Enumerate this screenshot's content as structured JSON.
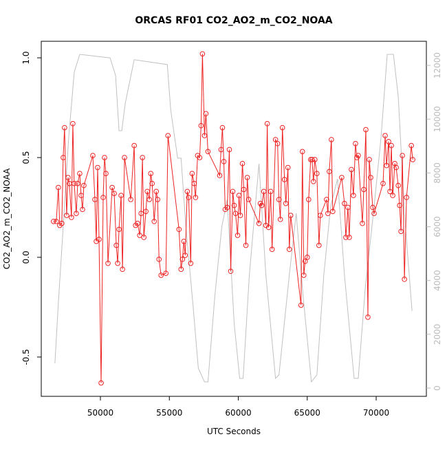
{
  "chart_data": {
    "type": "line",
    "title": "ORCAS RF01 CO2_AO2_m_CO2_NOAA",
    "xlabel": "UTC Seconds",
    "ylabel": "CO2_AO2_m_CO2_NOAA",
    "xlim": [
      45710,
      73640
    ],
    "ylim": [
      -0.697,
      1.083
    ],
    "y2lim": [
      -307,
      12896
    ],
    "xticks": [
      50000,
      55000,
      60000,
      65000,
      70000
    ],
    "yticks": [
      -0.5,
      {
        "value": 0,
        "label": "0.0"
      },
      0.5,
      {
        "value": 1,
        "label": "1.0"
      }
    ],
    "y2ticks": [
      0,
      2000,
      4000,
      6000,
      8000,
      10000,
      12000
    ],
    "series": [
      {
        "color": "#ee2222",
        "markers": true,
        "x": [
          46600,
          46800,
          46950,
          47050,
          47200,
          47300,
          47400,
          47550,
          47650,
          47750,
          47900,
          48000,
          48100,
          48250,
          48350,
          48500,
          48600,
          48700,
          48800,
          49450,
          49600,
          49700,
          49800,
          49900,
          50050,
          50200,
          50300,
          50400,
          50550,
          50850,
          51000,
          51150,
          51250,
          51350,
          51500,
          51600,
          51750,
          52200,
          52450,
          52550,
          52700,
          52850,
          52950,
          53050,
          53150,
          53300,
          53400,
          53550,
          53650,
          53750,
          53900,
          54050,
          54150,
          54250,
          54400,
          54750,
          54900,
          55700,
          55850,
          55950,
          56050,
          56150,
          56300,
          56400,
          56550,
          56650,
          56800,
          56900,
          57050,
          57200,
          57300,
          57400,
          57550,
          57650,
          57800,
          58650,
          58750,
          58850,
          58950,
          59050,
          59200,
          59350,
          59450,
          59600,
          59700,
          59800,
          59950,
          60050,
          60150,
          60300,
          60400,
          60550,
          60650,
          60750,
          61500,
          61600,
          61700,
          61850,
          62000,
          62100,
          62200,
          62350,
          62450,
          62700,
          62850,
          62950,
          63050,
          63200,
          63350,
          63450,
          63600,
          63700,
          63800,
          64550,
          64650,
          64750,
          64850,
          65000,
          65100,
          65250,
          65350,
          65450,
          65550,
          65700,
          65850,
          65950,
          66400,
          66500,
          66600,
          66750,
          66850,
          67500,
          67700,
          67800,
          67950,
          68050,
          68200,
          68350,
          68500,
          68600,
          68700,
          69000,
          69100,
          69250,
          69400,
          69500,
          69600,
          69750,
          69850,
          70500,
          70650,
          70750,
          70900,
          71000,
          71100,
          71200,
          71350,
          71450,
          71600,
          71700,
          71800,
          71900,
          72050,
          72200,
          72550,
          72650
        ],
        "values": [
          0.18,
          0.18,
          0.35,
          0.16,
          0.17,
          0.5,
          0.65,
          0.21,
          0.4,
          0.37,
          0.2,
          0.67,
          0.37,
          0.22,
          0.37,
          0.42,
          0.31,
          0.24,
          0.36,
          0.51,
          0.29,
          0.08,
          0.45,
          0.09,
          -0.63,
          0.3,
          0.5,
          0.42,
          -0.03,
          0.35,
          0.32,
          0.06,
          -0.03,
          0.14,
          0.31,
          -0.06,
          0.5,
          0.29,
          0.56,
          0.16,
          0.17,
          0.11,
          0.22,
          0.5,
          0.1,
          0.23,
          0.33,
          0.29,
          0.42,
          0.37,
          0.18,
          0.33,
          0.29,
          -0.01,
          -0.09,
          -0.08,
          0.61,
          0.14,
          -0.06,
          -0.01,
          0.08,
          0.01,
          0.33,
          0.3,
          -0.03,
          0.42,
          0.37,
          0.3,
          0.51,
          0.5,
          0.66,
          1.02,
          0.61,
          0.72,
          0.53,
          0.41,
          0.54,
          0.65,
          0.48,
          0.24,
          0.25,
          0.54,
          -0.07,
          0.33,
          0.26,
          0.22,
          0.11,
          0.31,
          0.21,
          0.47,
          0.34,
          0.06,
          0.4,
          0.29,
          0.17,
          0.27,
          0.26,
          0.33,
          0.16,
          0.67,
          0.15,
          0.33,
          0.04,
          0.59,
          0.57,
          0.29,
          0.19,
          0.65,
          0.39,
          0.27,
          0.45,
          0.04,
          0.21,
          -0.24,
          0.53,
          -0.09,
          -0.02,
          0.0,
          0.29,
          0.49,
          0.49,
          0.38,
          0.49,
          0.42,
          0.06,
          0.21,
          0.29,
          0.22,
          0.43,
          0.59,
          0.23,
          0.4,
          0.27,
          0.1,
          0.25,
          0.1,
          0.44,
          0.31,
          0.57,
          0.5,
          0.51,
          0.17,
          0.34,
          0.64,
          -0.3,
          0.49,
          0.4,
          0.25,
          0.22,
          0.37,
          0.61,
          0.46,
          0.58,
          0.33,
          0.56,
          0.31,
          0.47,
          0.45,
          0.36,
          0.26,
          0.13,
          0.51,
          -0.11,
          0.3,
          0.56,
          0.49
        ]
      },
      {
        "color": "#c0c0c0",
        "axis": "y2",
        "markers": false,
        "x": [
          46700,
          46950,
          47300,
          47700,
          48100,
          48500,
          50700,
          51100,
          51350,
          51550,
          51800,
          52450,
          54850,
          55100,
          55600,
          55850,
          56200,
          56700,
          57100,
          57550,
          57800,
          58300,
          58800,
          59200,
          59700,
          60100,
          60350,
          60800,
          61500,
          62000,
          62700,
          62950,
          63700,
          64200,
          64700,
          65300,
          65700,
          66200,
          66700,
          67200,
          67700,
          68400,
          68700,
          69200,
          69850,
          70350,
          70800,
          71250,
          71600,
          72050,
          72600
        ],
        "values": [
          921,
          3173,
          5988,
          9314,
          11745,
          12410,
          12280,
          11620,
          9570,
          9570,
          10590,
          12210,
          12030,
          10340,
          8550,
          8550,
          5990,
          3170,
          740,
          230,
          230,
          3430,
          5990,
          7010,
          2410,
          360,
          360,
          4200,
          8340,
          4200,
          360,
          490,
          4200,
          6500,
          3430,
          230,
          490,
          4200,
          6760,
          7780,
          4200,
          360,
          360,
          3680,
          6760,
          9310,
          12410,
          12410,
          10850,
          6500,
          2870
        ]
      }
    ]
  }
}
